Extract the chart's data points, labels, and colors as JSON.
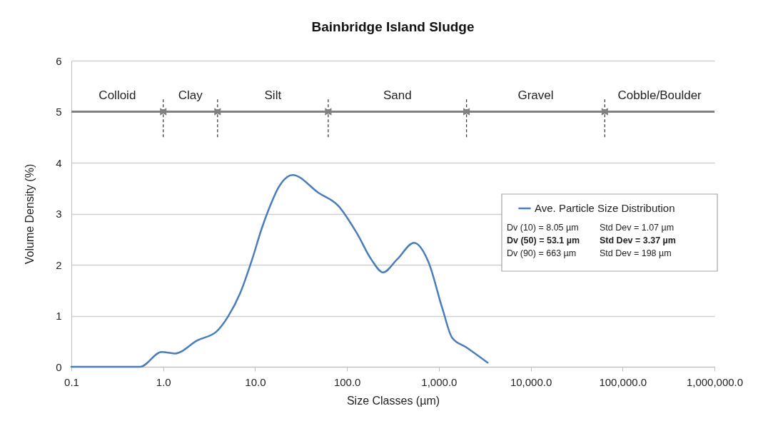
{
  "chart_data": {
    "type": "line",
    "title": "Bainbridge Island Sludge",
    "xlabel": "Size Classes (µm)",
    "ylabel": "Volume Density (%)",
    "x": [
      0.1,
      0.56,
      0.96,
      1.34,
      2.36,
      3.8,
      5.1,
      6.9,
      9.3,
      11.8,
      14.1,
      17.9,
      25.6,
      49,
      80,
      128,
      183,
      247,
      353,
      537,
      768,
      1097,
      1393,
      1990,
      3400
    ],
    "series": [
      {
        "name": "Ave. Particle Size Distribution",
        "color": "#4a7ebb",
        "values": [
          0,
          0,
          0.29,
          0.26,
          0.52,
          0.69,
          0.99,
          1.45,
          2.11,
          2.71,
          3.09,
          3.51,
          3.76,
          3.41,
          3.16,
          2.62,
          2.11,
          1.85,
          2.11,
          2.43,
          2.06,
          1.13,
          0.57,
          0.38,
          0.08
        ]
      }
    ],
    "log": "x",
    "xlim": [
      0.1,
      1000000
    ],
    "ylim": [
      0,
      6
    ],
    "xticks": [
      0.1,
      {
        "value": 1,
        "label": "1.0"
      },
      {
        "value": 10,
        "label": "10.0"
      },
      {
        "value": 100,
        "label": "100.0"
      },
      {
        "value": 1000,
        "label": "1,000.0"
      },
      {
        "value": 10000,
        "label": "10,000.0"
      },
      {
        "value": 100000,
        "label": "100,000.0"
      },
      {
        "value": 1000000,
        "label": "1,000,000.0"
      }
    ],
    "yticks": [
      0,
      1,
      2,
      3,
      4,
      5,
      6
    ],
    "grid": "y",
    "legend": "right",
    "marker": "none",
    "line_style": "solid",
    "ref_lines": [
      {
        "axis": "y",
        "value": 5,
        "color": "#808080",
        "line_style": "solid"
      },
      {
        "axis": "x",
        "value": 1,
        "color": "#404040",
        "line_style": "dashed"
      },
      {
        "axis": "x",
        "value": 3.9,
        "color": "#404040",
        "line_style": "dashed"
      },
      {
        "axis": "x",
        "value": 62.5,
        "color": "#404040",
        "line_style": "dashed"
      },
      {
        "axis": "x",
        "value": 2000,
        "color": "#404040",
        "line_style": "dashed"
      },
      {
        "axis": "x",
        "value": 64000,
        "color": "#404040",
        "line_style": "dashed"
      }
    ],
    "annotations": [
      "Colloid",
      "Clay",
      "Silt",
      "Sand",
      "Gravel",
      "Cobble/Boulder",
      "Dv (10) = 8.05 µm",
      "Std Dev = 1.07 µm",
      "Dv (50) = 53.1 µm",
      "Std Dev = 3.37 µm",
      "Dv (90) = 663 µm",
      "Std Dev = 198 µm"
    ]
  }
}
